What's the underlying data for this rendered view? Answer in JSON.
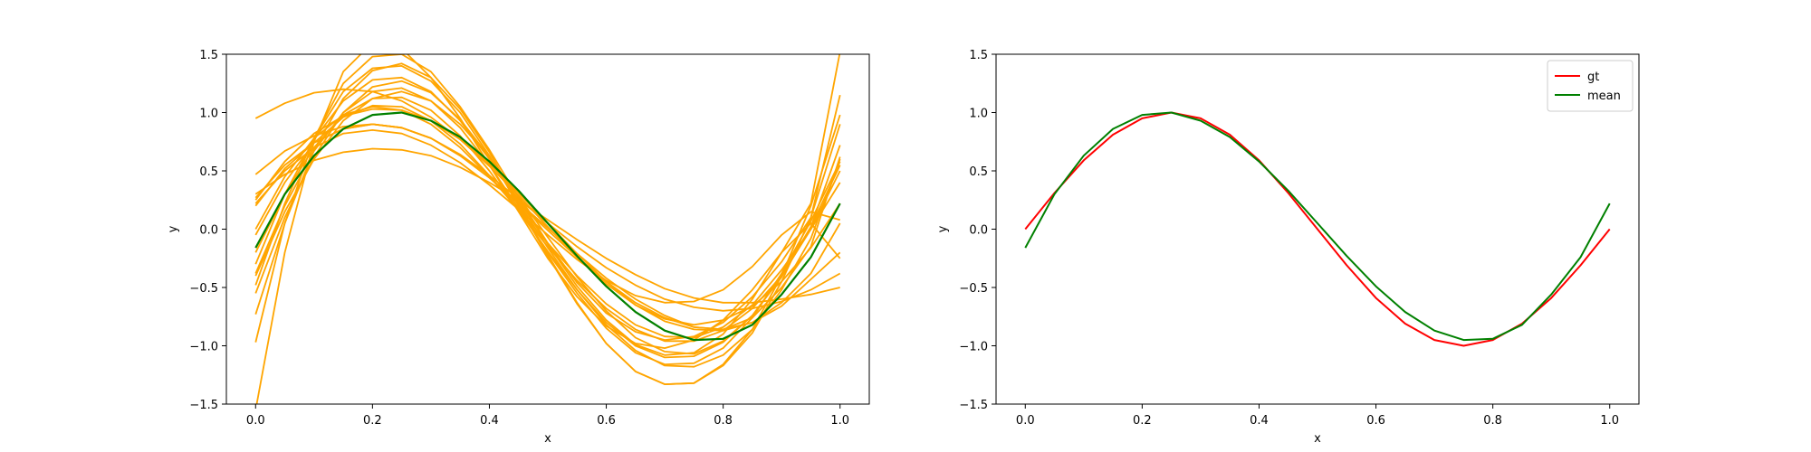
{
  "chart_data": [
    {
      "type": "line",
      "title": "",
      "xlabel": "x",
      "ylabel": "y",
      "xlim": [
        -0.05,
        1.05
      ],
      "ylim": [
        -1.5,
        1.5
      ],
      "xticks": [
        "0.0",
        "0.2",
        "0.4",
        "0.6",
        "0.8",
        "1.0"
      ],
      "yticks": [
        "−1.5",
        "−1.0",
        "−0.5",
        "0.0",
        "0.5",
        "1.0",
        "1.5"
      ],
      "grid": false,
      "legend": "none",
      "colors": {
        "samples": "#ffa500",
        "mean": "#008000"
      },
      "x": [
        0.0,
        0.05,
        0.1,
        0.15,
        0.2,
        0.25,
        0.3,
        0.35,
        0.4,
        0.45,
        0.5,
        0.55,
        0.6,
        0.65,
        0.7,
        0.75,
        0.8,
        0.85,
        0.9,
        0.95,
        1.0
      ],
      "series": [
        {
          "values": [
            -0.16,
            0.3,
            0.63,
            0.86,
            0.98,
            1.0,
            0.93,
            0.79,
            0.58,
            0.33,
            0.05,
            -0.23,
            -0.49,
            -0.71,
            -0.87,
            -0.95,
            -0.94,
            -0.82,
            -0.56,
            -0.24,
            0.22
          ]
        },
        {
          "values": [
            0.95,
            1.08,
            1.17,
            1.2,
            1.18,
            1.1,
            0.96,
            0.77,
            0.54,
            0.29,
            0.02,
            -0.24,
            -0.47,
            -0.65,
            -0.77,
            -0.82,
            -0.78,
            -0.66,
            -0.45,
            -0.16,
            0.22
          ]
        },
        {
          "values": [
            -1.55,
            -0.2,
            0.75,
            1.35,
            1.6,
            1.55,
            1.3,
            0.95,
            0.55,
            0.15,
            -0.25,
            -0.58,
            -0.83,
            -0.98,
            -1.02,
            -0.95,
            -0.78,
            -0.52,
            -0.2,
            0.22,
            1.52
          ]
        },
        {
          "values": [
            -0.97,
            0.05,
            0.78,
            1.25,
            1.48,
            1.5,
            1.35,
            1.05,
            0.68,
            0.27,
            -0.12,
            -0.46,
            -0.72,
            -0.88,
            -0.95,
            -0.92,
            -0.8,
            -0.58,
            -0.28,
            0.1,
            1.15
          ]
        },
        {
          "values": [
            0.47,
            0.67,
            0.8,
            0.88,
            0.9,
            0.87,
            0.78,
            0.64,
            0.46,
            0.26,
            0.05,
            -0.15,
            -0.33,
            -0.48,
            -0.6,
            -0.67,
            -0.7,
            -0.68,
            -0.62,
            -0.52,
            -0.38
          ]
        },
        {
          "values": [
            0.3,
            0.47,
            0.59,
            0.66,
            0.69,
            0.68,
            0.63,
            0.53,
            0.4,
            0.25,
            0.08,
            -0.09,
            -0.25,
            -0.39,
            -0.51,
            -0.59,
            -0.63,
            -0.63,
            -0.6,
            -0.56,
            -0.5
          ]
        },
        {
          "values": [
            0.22,
            0.5,
            0.7,
            0.82,
            0.85,
            0.82,
            0.72,
            0.57,
            0.38,
            0.17,
            -0.05,
            -0.26,
            -0.44,
            -0.57,
            -0.63,
            -0.62,
            -0.52,
            -0.32,
            -0.05,
            0.15,
            0.08
          ]
        },
        {
          "values": [
            0.0,
            0.45,
            0.78,
            0.98,
            1.05,
            1.02,
            0.9,
            0.7,
            0.45,
            0.17,
            -0.12,
            -0.4,
            -0.64,
            -0.82,
            -0.92,
            -0.93,
            -0.84,
            -0.65,
            -0.35,
            0.0,
            0.4
          ]
        },
        {
          "values": [
            -0.4,
            0.15,
            0.6,
            0.93,
            1.12,
            1.18,
            1.1,
            0.9,
            0.62,
            0.28,
            -0.07,
            -0.41,
            -0.7,
            -0.93,
            -1.05,
            -1.07,
            -0.96,
            -0.74,
            -0.41,
            0.02,
            0.55
          ]
        },
        {
          "values": [
            0.25,
            0.58,
            0.82,
            0.97,
            1.03,
            1.02,
            0.93,
            0.77,
            0.56,
            0.31,
            0.05,
            -0.21,
            -0.45,
            -0.65,
            -0.79,
            -0.86,
            -0.87,
            -0.8,
            -0.63,
            -0.38,
            0.05
          ]
        },
        {
          "values": [
            -0.3,
            0.3,
            0.77,
            1.1,
            1.28,
            1.3,
            1.18,
            0.93,
            0.6,
            0.23,
            -0.16,
            -0.52,
            -0.82,
            -1.04,
            -1.17,
            -1.18,
            -1.08,
            -0.86,
            -0.52,
            -0.08,
            0.6
          ]
        },
        {
          "values": [
            -0.48,
            0.22,
            0.78,
            1.18,
            1.38,
            1.4,
            1.27,
            1.0,
            0.63,
            0.2,
            -0.23,
            -0.64,
            -0.98,
            -1.22,
            -1.33,
            -1.32,
            -1.16,
            -0.86,
            -0.4,
            0.2,
            0.98
          ]
        },
        {
          "values": [
            -0.73,
            0.05,
            0.68,
            1.12,
            1.36,
            1.42,
            1.3,
            1.03,
            0.66,
            0.22,
            -0.22,
            -0.63,
            -0.98,
            -1.22,
            -1.33,
            -1.32,
            -1.17,
            -0.89,
            -0.45,
            0.1,
            0.9
          ]
        },
        {
          "values": [
            0.2,
            0.52,
            0.74,
            0.86,
            0.9,
            0.87,
            0.78,
            0.63,
            0.44,
            0.22,
            -0.01,
            -0.24,
            -0.45,
            -0.63,
            -0.76,
            -0.84,
            -0.86,
            -0.8,
            -0.66,
            -0.43,
            -0.2
          ]
        },
        {
          "values": [
            -0.55,
            0.1,
            0.62,
            1.0,
            1.22,
            1.27,
            1.17,
            0.94,
            0.62,
            0.25,
            -0.13,
            -0.49,
            -0.78,
            -0.99,
            -1.08,
            -1.06,
            -0.9,
            -0.6,
            -0.2,
            0.05,
            -0.25
          ]
        },
        {
          "values": [
            0.27,
            0.55,
            0.74,
            0.86,
            0.9,
            0.87,
            0.78,
            0.63,
            0.44,
            0.23,
            0.01,
            -0.21,
            -0.42,
            -0.6,
            -0.74,
            -0.84,
            -0.86,
            -0.76,
            -0.5,
            -0.15,
            0.62
          ]
        },
        {
          "values": [
            -0.05,
            0.4,
            0.74,
            0.96,
            1.06,
            1.05,
            0.93,
            0.73,
            0.46,
            0.16,
            -0.15,
            -0.44,
            -0.68,
            -0.86,
            -0.96,
            -0.96,
            -0.87,
            -0.68,
            -0.4,
            0.0,
            0.5
          ]
        },
        {
          "values": [
            -0.2,
            0.3,
            0.7,
            0.98,
            1.12,
            1.13,
            1.02,
            0.8,
            0.5,
            0.16,
            -0.19,
            -0.52,
            -0.8,
            -1.0,
            -1.1,
            -1.09,
            -0.97,
            -0.74,
            -0.4,
            0.02,
            0.72
          ]
        },
        {
          "values": [
            -0.38,
            0.2,
            0.67,
            1.0,
            1.18,
            1.21,
            1.1,
            0.87,
            0.55,
            0.18,
            -0.2,
            -0.55,
            -0.85,
            -1.06,
            -1.16,
            -1.15,
            -1.02,
            -0.76,
            -0.38,
            0.07,
            0.58
          ]
        },
        {
          "values": [
            -0.16,
            0.3,
            0.63,
            0.86,
            0.98,
            1.0,
            0.93,
            0.79,
            0.58,
            0.33,
            0.05,
            -0.23,
            -0.49,
            -0.71,
            -0.87,
            -0.95,
            -0.94,
            -0.82,
            -0.56,
            -0.24,
            0.22
          ],
          "role": "mean"
        }
      ]
    },
    {
      "type": "line",
      "title": "",
      "xlabel": "x",
      "ylabel": "y",
      "xlim": [
        -0.05,
        1.05
      ],
      "ylim": [
        -1.5,
        1.5
      ],
      "xticks": [
        "0.0",
        "0.2",
        "0.4",
        "0.6",
        "0.8",
        "1.0"
      ],
      "yticks": [
        "−1.5",
        "−1.0",
        "−0.5",
        "0.0",
        "0.5",
        "1.0",
        "1.5"
      ],
      "grid": false,
      "legend": "top-right",
      "x": [
        0.0,
        0.05,
        0.1,
        0.15,
        0.2,
        0.25,
        0.3,
        0.35,
        0.4,
        0.45,
        0.5,
        0.55,
        0.6,
        0.65,
        0.7,
        0.75,
        0.8,
        0.85,
        0.9,
        0.95,
        1.0
      ],
      "series": [
        {
          "name": "gt",
          "color": "#ff0000",
          "values": [
            0.0,
            0.31,
            0.59,
            0.81,
            0.95,
            1.0,
            0.95,
            0.81,
            0.59,
            0.31,
            0.0,
            -0.31,
            -0.59,
            -0.81,
            -0.95,
            -1.0,
            -0.95,
            -0.81,
            -0.59,
            -0.31,
            0.0
          ]
        },
        {
          "name": "mean",
          "color": "#008000",
          "values": [
            -0.16,
            0.3,
            0.63,
            0.86,
            0.98,
            1.0,
            0.93,
            0.79,
            0.58,
            0.33,
            0.05,
            -0.23,
            -0.49,
            -0.71,
            -0.87,
            -0.95,
            -0.94,
            -0.82,
            -0.56,
            -0.24,
            0.22
          ]
        }
      ]
    }
  ]
}
